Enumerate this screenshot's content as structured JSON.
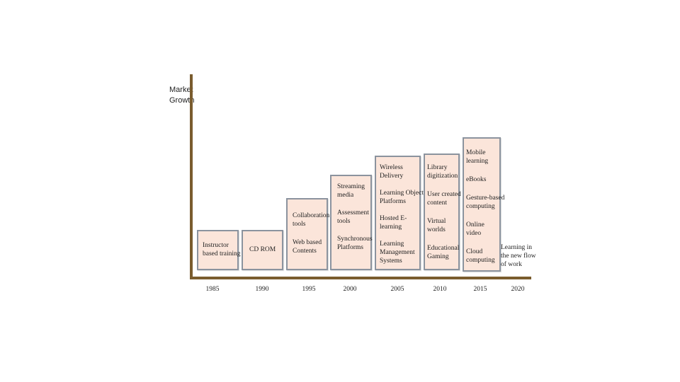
{
  "y_axis_label": [
    "Market",
    "Growth"
  ],
  "end_note": [
    "Learning in",
    "the new flow",
    "of work"
  ],
  "years": [
    "1985",
    "1990",
    "1995",
    "2000",
    "2005",
    "2010",
    "2015",
    "2020"
  ],
  "boxes": [
    {
      "year": "1985",
      "items": [
        [
          "Instructor",
          "based training"
        ]
      ]
    },
    {
      "year": "1990",
      "items": [
        [
          "CD ROM"
        ]
      ]
    },
    {
      "year": "1995",
      "items": [
        [
          "Collaboration",
          "tools"
        ],
        [
          "Web based",
          "Contents"
        ]
      ]
    },
    {
      "year": "2000",
      "items": [
        [
          "Streaming",
          "media"
        ],
        [
          "Assessment",
          "tools"
        ],
        [
          "Synchronous",
          "Platforms"
        ]
      ]
    },
    {
      "year": "2005",
      "items": [
        [
          "Wireless",
          "Delivery"
        ],
        [
          "Learning Object",
          "Platforms"
        ],
        [
          "Hosted E-",
          "learning"
        ],
        [
          "Learning",
          "Management",
          "Systems"
        ]
      ]
    },
    {
      "year": "2010",
      "items": [
        [
          "Library",
          "digitization"
        ],
        [
          "User created",
          "content"
        ],
        [
          "Virtual",
          "worlds"
        ],
        [
          "Educational",
          "Gaming"
        ]
      ]
    },
    {
      "year": "2015",
      "items": [
        [
          "Mobile",
          "learning"
        ],
        [
          "eBooks"
        ],
        [
          "Gesture-based",
          "computing"
        ],
        [
          "Online",
          "video"
        ],
        [
          "Cloud",
          "computing"
        ]
      ]
    }
  ],
  "colors": {
    "box_fill": "#fbe5da",
    "box_border": "#8b939e",
    "axis": "#7a5c2e"
  }
}
